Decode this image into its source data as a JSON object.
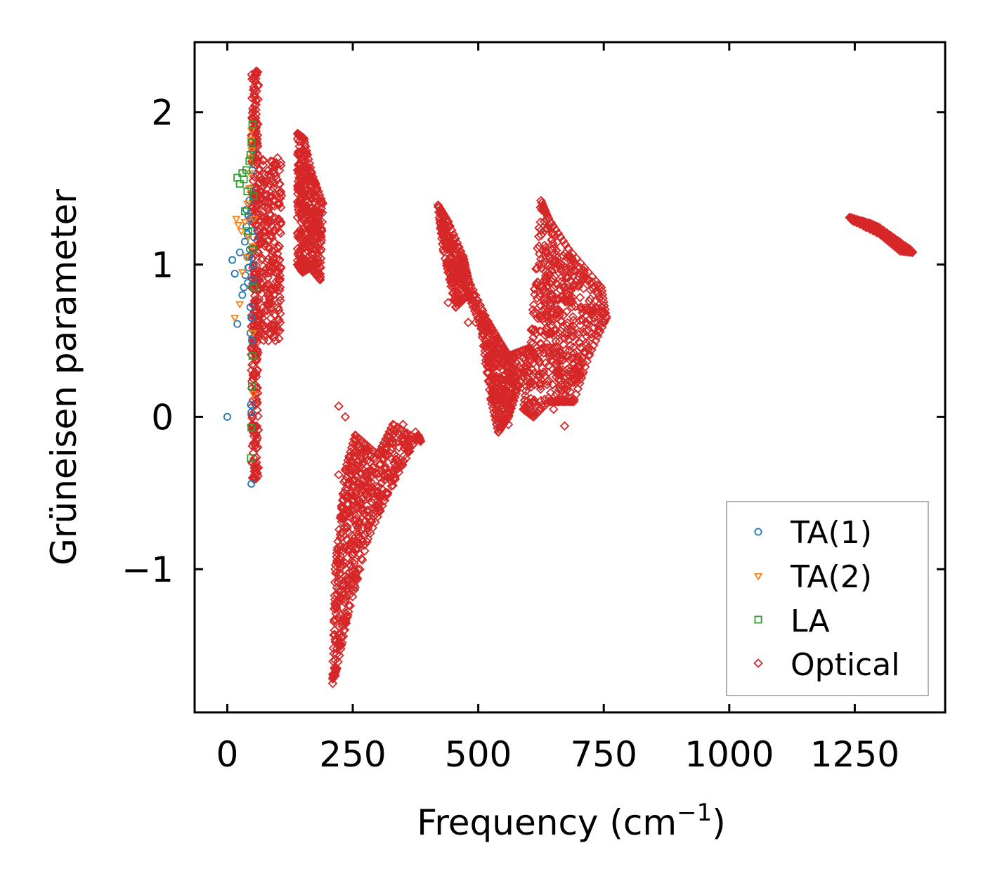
{
  "chart_data": {
    "type": "scatter",
    "title": "",
    "xlabel": "Frequency (cm",
    "xlabel_sup": "−1",
    "xlabel_close": ")",
    "ylabel": "Grüneisen parameter",
    "xlim": [
      -65,
      1430
    ],
    "ylim": [
      -1.94,
      2.46
    ],
    "xticks": [
      0,
      250,
      500,
      750,
      1000,
      1250
    ],
    "xtick_labels": [
      "0",
      "250",
      "500",
      "750",
      "1000",
      "1250"
    ],
    "yticks": [
      -1,
      0,
      1,
      2
    ],
    "ytick_labels": [
      "−1",
      "0",
      "1",
      "2"
    ],
    "grid": false,
    "legend_position": "bottom-right",
    "series": [
      {
        "name": "TA(1)",
        "marker": "circle",
        "color": "#1f77b4",
        "points": [
          [
            0,
            0
          ],
          [
            10,
            1.03
          ],
          [
            15,
            0.94
          ],
          [
            20,
            0.61
          ],
          [
            25,
            1.08
          ],
          [
            30,
            0.8
          ],
          [
            33,
            0.85
          ],
          [
            35,
            1.15
          ],
          [
            36,
            0.93
          ],
          [
            38,
            1.25
          ],
          [
            40,
            1.2
          ],
          [
            40,
            1.05
          ],
          [
            41,
            0.88
          ],
          [
            42,
            1.32
          ],
          [
            43,
            0.98
          ],
          [
            44,
            1.42
          ],
          [
            45,
            1.1
          ],
          [
            45,
            1.3
          ],
          [
            46,
            0.72
          ],
          [
            46,
            0.55
          ],
          [
            47,
            1.5
          ],
          [
            47,
            0.08
          ],
          [
            48,
            0.03
          ],
          [
            48,
            0.65
          ],
          [
            48,
            -0.44
          ],
          [
            49,
            0.5
          ],
          [
            50,
            1.62
          ],
          [
            50,
            1.75
          ],
          [
            50,
            1.22
          ],
          [
            51,
            0.9
          ],
          [
            52,
            1.0
          ],
          [
            53,
            1.18
          ],
          [
            38,
            1.36
          ],
          [
            42,
            0.98
          ],
          [
            44,
            1.05
          ]
        ]
      },
      {
        "name": "TA(2)",
        "marker": "triangle-down",
        "color": "#ff7f0e",
        "points": [
          [
            15,
            0.65
          ],
          [
            18,
            1.3
          ],
          [
            22,
            1.26
          ],
          [
            25,
            0.74
          ],
          [
            28,
            1.22
          ],
          [
            30,
            0.95
          ],
          [
            35,
            1.28
          ],
          [
            38,
            1.05
          ],
          [
            40,
            1.4
          ],
          [
            42,
            1.18
          ],
          [
            44,
            1.5
          ],
          [
            45,
            1.6
          ],
          [
            46,
            1.7
          ],
          [
            47,
            1.82
          ],
          [
            48,
            1.88
          ],
          [
            49,
            1.75
          ],
          [
            50,
            1.12
          ],
          [
            51,
            0.55
          ],
          [
            52,
            0.15
          ],
          [
            53,
            1.3
          ]
        ]
      },
      {
        "name": "LA",
        "marker": "square",
        "color": "#2ca02c",
        "points": [
          [
            20,
            1.57
          ],
          [
            25,
            1.53
          ],
          [
            30,
            1.6
          ],
          [
            33,
            1.56
          ],
          [
            35,
            1.35
          ],
          [
            38,
            1.62
          ],
          [
            40,
            1.48
          ],
          [
            42,
            1.22
          ],
          [
            44,
            1.68
          ],
          [
            46,
            1.72
          ],
          [
            48,
            1.8
          ],
          [
            50,
            1.92
          ],
          [
            50,
            0.4
          ],
          [
            49,
            0.2
          ],
          [
            48,
            -0.07
          ],
          [
            47,
            -0.27
          ],
          [
            51,
            1.1
          ],
          [
            52,
            1.45
          ],
          [
            53,
            0.85
          ]
        ]
      },
      {
        "name": "Optical",
        "marker": "diamond",
        "color": "#d62728",
        "bands": [
          {
            "x": [
              48,
              62
            ],
            "y": [
              -0.42,
              2.27
            ],
            "n": 300
          },
          {
            "x": [
              62,
              108
            ],
            "y": [
              0.5,
              1.72
            ],
            "n": 260
          },
          {
            "poly": [
              [
                140,
                1.86
              ],
              [
                152,
                1.83
              ],
              [
                168,
                1.6
              ],
              [
                190,
                1.4
              ],
              [
                185,
                0.9
              ],
              [
                165,
                0.98
              ],
              [
                150,
                0.95
              ],
              [
                140,
                1.0
              ]
            ],
            "n": 320
          },
          {
            "poly": [
              [
                210,
                -1.72
              ],
              [
                218,
                -1.65
              ],
              [
                240,
                -1.3
              ],
              [
                280,
                -0.8
              ],
              [
                320,
                -0.5
              ],
              [
                380,
                -0.12
              ],
              [
                385,
                -0.16
              ],
              [
                330,
                -0.05
              ],
              [
                300,
                -0.25
              ],
              [
                255,
                -0.12
              ],
              [
                235,
                -0.35
              ],
              [
                215,
                -1.0
              ]
            ],
            "n": 480
          },
          {
            "poly": [
              [
                420,
                1.39
              ],
              [
                440,
                1.28
              ],
              [
                470,
                1.05
              ],
              [
                480,
                0.9
              ],
              [
                520,
                0.62
              ],
              [
                545,
                0.48
              ],
              [
                560,
                0.4
              ],
              [
                600,
                0.45
              ],
              [
                610,
                0.42
              ],
              [
                580,
                0.2
              ],
              [
                560,
                0.0
              ],
              [
                540,
                -0.1
              ],
              [
                525,
                0.12
              ],
              [
                505,
                0.6
              ],
              [
                480,
                0.8
              ],
              [
                455,
                0.72
              ],
              [
                430,
                1.1
              ]
            ],
            "n": 520
          },
          {
            "poly": [
              [
                600,
                0.3
              ],
              [
                625,
                1.42
              ],
              [
                640,
                1.3
              ],
              [
                680,
                1.1
              ],
              [
                745,
                0.85
              ],
              [
                755,
                0.65
              ],
              [
                720,
                0.4
              ],
              [
                690,
                0.1
              ],
              [
                660,
                0.1
              ],
              [
                640,
                0.1
              ],
              [
                610,
                0.0
              ],
              [
                590,
                0.05
              ]
            ],
            "n": 520
          },
          {
            "poly": [
              [
                1240,
                1.31
              ],
              [
                1280,
                1.27
              ],
              [
                1300,
                1.24
              ],
              [
                1360,
                1.1
              ],
              [
                1365,
                1.08
              ],
              [
                1340,
                1.09
              ],
              [
                1300,
                1.2
              ],
              [
                1245,
                1.29
              ]
            ],
            "n": 120
          }
        ],
        "points": [
          [
            222,
            0.07
          ],
          [
            235,
            0.0
          ],
          [
            222,
            -0.38
          ],
          [
            228,
            -0.6
          ],
          [
            230,
            -0.67
          ],
          [
            210,
            -1.75
          ],
          [
            215,
            -1.7
          ],
          [
            225,
            -1.3
          ],
          [
            330,
            -0.45
          ],
          [
            350,
            -0.05
          ],
          [
            375,
            -0.1
          ],
          [
            612,
            0.02
          ],
          [
            605,
            0.12
          ],
          [
            672,
            -0.06
          ],
          [
            650,
            0.05
          ],
          [
            560,
            -0.05
          ],
          [
            440,
            0.75
          ],
          [
            480,
            0.62
          ],
          [
            495,
            0.62
          ],
          [
            505,
            0.63
          ],
          [
            515,
            0.35
          ],
          [
            82,
            0.5
          ],
          [
            75,
            0.58
          ],
          [
            55,
            -0.38
          ],
          [
            58,
            -0.3
          ],
          [
            60,
            -0.2
          ],
          [
            58,
            2.27
          ],
          [
            183,
            0.91
          ],
          [
            168,
            1.0
          ],
          [
            155,
            1.02
          ],
          [
            100,
            1.7
          ],
          [
            95,
            1.65
          ]
        ]
      }
    ]
  },
  "legend": {
    "items": [
      "TA(1)",
      "TA(2)",
      "LA",
      "Optical"
    ]
  }
}
